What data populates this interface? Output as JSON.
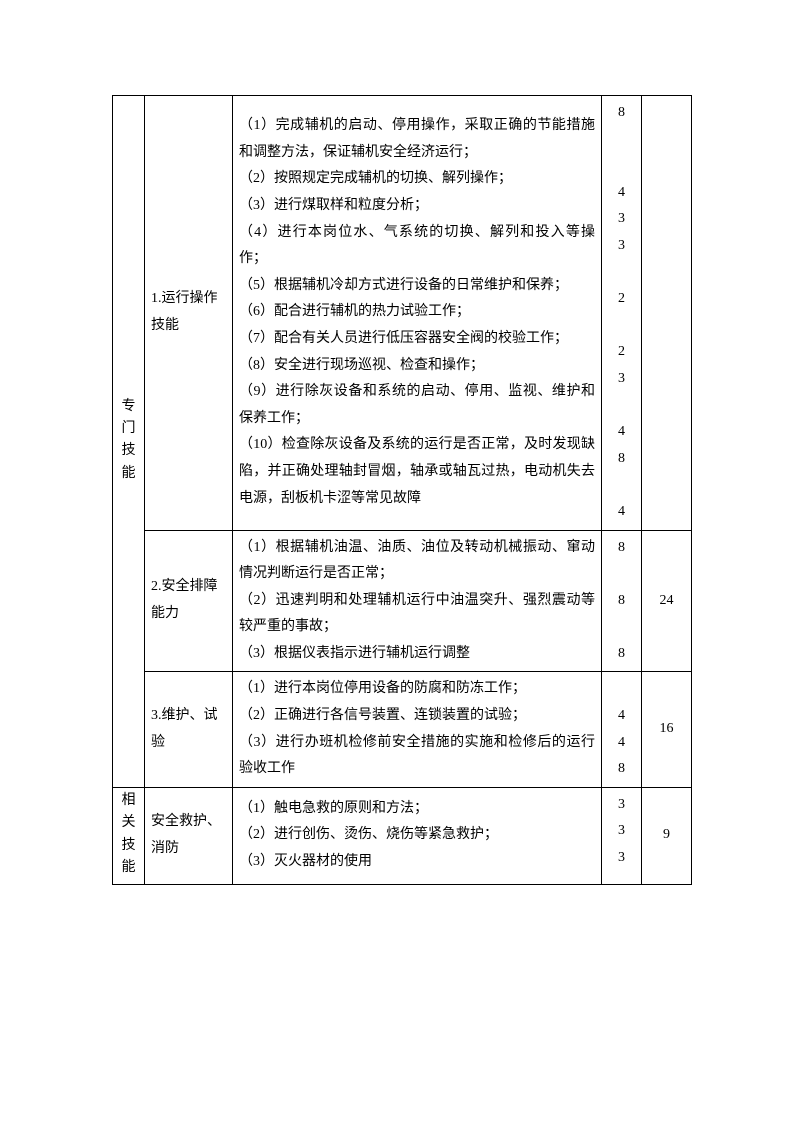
{
  "categories": [
    {
      "name": "专门技能",
      "sections": [
        {
          "label": "1.运行操作技能",
          "items": [
            "（1）完成辅机的启动、停用操作，采取正确的节能措施和调整方法，保证辅机安全经济运行；",
            "（2）按照规定完成辅机的切换、解列操作；",
            "（3）进行煤取样和粒度分析；",
            "（4）进行本岗位水、气系统的切换、解列和投入等操作；",
            "（5）根据辅机冷却方式进行设备的日常维护和保养；",
            "（6）配合进行辅机的热力试验工作；",
            "（7）配合有关人员进行低压容器安全阀的校验工作；",
            "（8）安全进行现场巡视、检查和操作；",
            "（9）进行除灰设备和系统的启动、停用、监视、维护和保养工作；",
            "（10）检查除灰设备及系统的运行是否正常，及时发现缺陷，并正确处理轴封冒烟，轴承或轴瓦过热，电动机失去电源，刮板机卡涩等常见故障"
          ],
          "scores_text": "8\n\n\n4\n3\n3\n\n2\n\n2\n3\n\n4\n8\n\n4",
          "total": ""
        },
        {
          "label": "2.安全排障能力",
          "items": [
            "（1）根据辅机油温、油质、油位及转动机械振动、窜动情况判断运行是否正常；",
            "（2）迅速判明和处理辅机运行中油温突升、强烈震动等较严重的事故；",
            "（3）根据仪表指示进行辅机运行调整"
          ],
          "scores_text": "8\n\n8\n\n8",
          "total": "24"
        },
        {
          "label": "3.维护、试验",
          "items": [
            "（1）进行本岗位停用设备的防腐和防冻工作；",
            "",
            "（2）正确进行各信号装置、连锁装置的试验；",
            "",
            "（3）进行办班机检修前安全措施的实施和检修后的运行验收工作"
          ],
          "scores_text": "\n4\n4\n8",
          "total": "16"
        }
      ]
    },
    {
      "name": "相关技能",
      "sections": [
        {
          "label": "安全救护、消防",
          "items": [
            "（1）触电急救的原则和方法；",
            "（2）进行创伤、烫伤、烧伤等紧急救护；",
            "（3）灭火器材的使用"
          ],
          "scores_text": "3\n3\n3",
          "total": "9"
        }
      ]
    }
  ]
}
